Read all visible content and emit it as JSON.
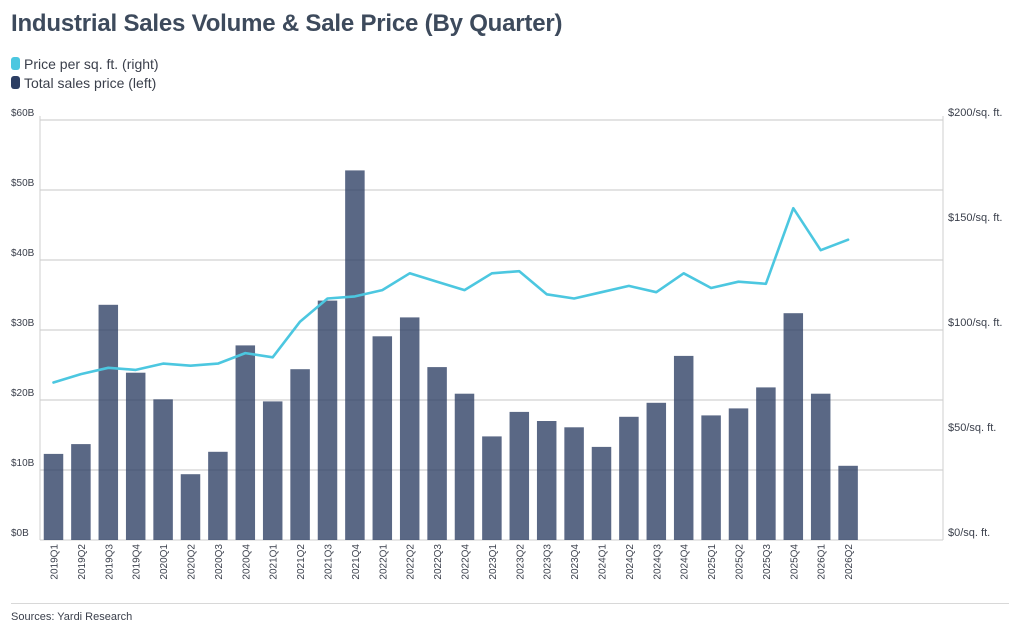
{
  "title": "Industrial Sales Volume & Sale Price (By Quarter)",
  "legend": [
    {
      "label": "Price per sq. ft. (right)",
      "color": "#4cc7e0"
    },
    {
      "label": "Total sales price (left)",
      "color": "#2c3e63"
    }
  ],
  "source": "Sources: Yardi Research",
  "chart_data": {
    "type": "bar",
    "title": "Industrial Sales Volume & Sale Price (By Quarter)",
    "categories": [
      "2019Q1",
      "2019Q2",
      "2019Q3",
      "2019Q4",
      "2020Q1",
      "2020Q2",
      "2020Q3",
      "2020Q4",
      "2021Q1",
      "2021Q2",
      "2021Q3",
      "2021Q4",
      "2022Q1",
      "2022Q2",
      "2022Q3",
      "2022Q4",
      "2023Q1",
      "2023Q2",
      "2023Q3",
      "2023Q4",
      "2024Q1",
      "2024Q2",
      "2024Q3",
      "2024Q4",
      "2025Q1",
      "2025Q2",
      "2025Q3",
      "2025Q4",
      "2026Q1",
      "2026Q2"
    ],
    "series": [
      {
        "name": "Total sales price (left)",
        "type": "bar",
        "axis": "left",
        "color": "#2c3e63",
        "values": [
          12.3,
          13.7,
          33.6,
          23.9,
          20.1,
          9.4,
          12.6,
          27.8,
          19.8,
          24.4,
          34.2,
          52.8,
          29.1,
          31.8,
          24.7,
          20.9,
          14.8,
          18.3,
          17.0,
          16.1,
          13.3,
          17.6,
          19.6,
          26.3,
          17.8,
          18.8,
          21.8,
          32.4,
          20.9,
          10.6
        ]
      },
      {
        "name": "Price per sq. ft. (right)",
        "type": "line",
        "axis": "right",
        "color": "#4cc7e0",
        "values": [
          75,
          79,
          82,
          81,
          84,
          83,
          84,
          89,
          87,
          104,
          115,
          116,
          119,
          127,
          123,
          119,
          127,
          128,
          117,
          115,
          118,
          121,
          118,
          127,
          120,
          123,
          122,
          158,
          138,
          143
        ]
      }
    ],
    "y_left": {
      "ticks": [
        "$0B",
        "$10B",
        "$20B",
        "$30B",
        "$40B",
        "$50B",
        "$60B"
      ],
      "range": [
        0,
        60
      ]
    },
    "y_right": {
      "ticks": [
        "$0/sq. ft.",
        "$50/sq. ft.",
        "$100/sq. ft.",
        "$150/sq. ft.",
        "$200/sq. ft."
      ],
      "range": [
        0,
        200
      ]
    },
    "grid": true,
    "legend_position": "top-left"
  }
}
